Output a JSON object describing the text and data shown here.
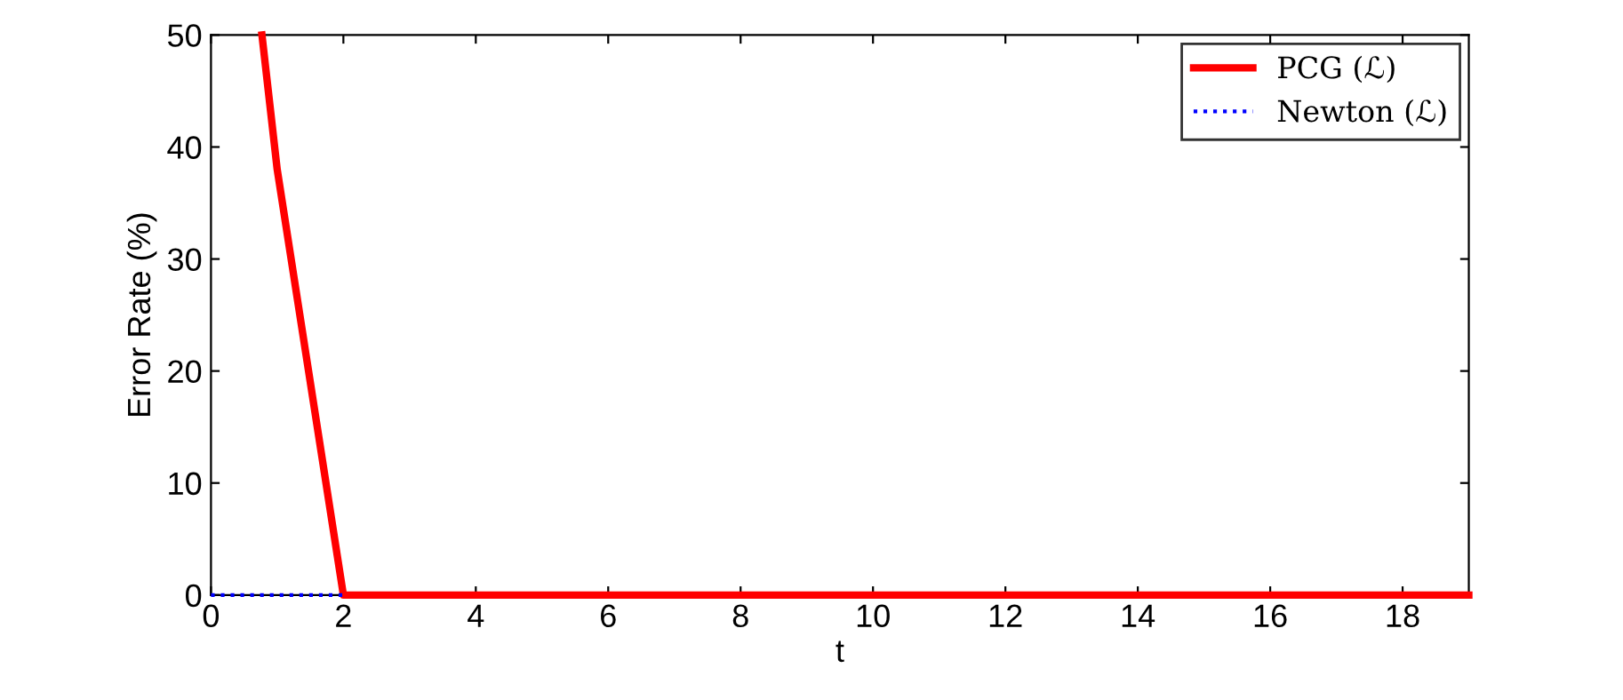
{
  "chart_data": {
    "type": "line",
    "xlabel": "t",
    "ylabel": "Error Rate (%)",
    "xlim": [
      0,
      19
    ],
    "ylim": [
      0,
      50
    ],
    "xticks": [
      0,
      2,
      4,
      6,
      8,
      10,
      12,
      14,
      16,
      18
    ],
    "yticks": [
      0,
      10,
      20,
      30,
      40,
      50
    ],
    "grid": false,
    "legend": "top right",
    "series": [
      {
        "name": "PCG (ℒ)",
        "color": "#ff0000",
        "line_style": "solid",
        "x": [
          0.77,
          1,
          2,
          3,
          4,
          5,
          6,
          7,
          8,
          9,
          10,
          11,
          12,
          13,
          14,
          15,
          16,
          17,
          18,
          19
        ],
        "values": [
          50,
          38,
          0,
          0,
          0,
          0,
          0,
          0,
          0,
          0,
          0,
          0,
          0,
          0,
          0,
          0,
          0,
          0,
          0,
          0
        ]
      },
      {
        "name": "Newton (ℒ)",
        "color": "#0000ff",
        "line_style": "dotted",
        "x": [
          0,
          1,
          2
        ],
        "values": [
          0,
          0,
          0
        ]
      }
    ]
  }
}
